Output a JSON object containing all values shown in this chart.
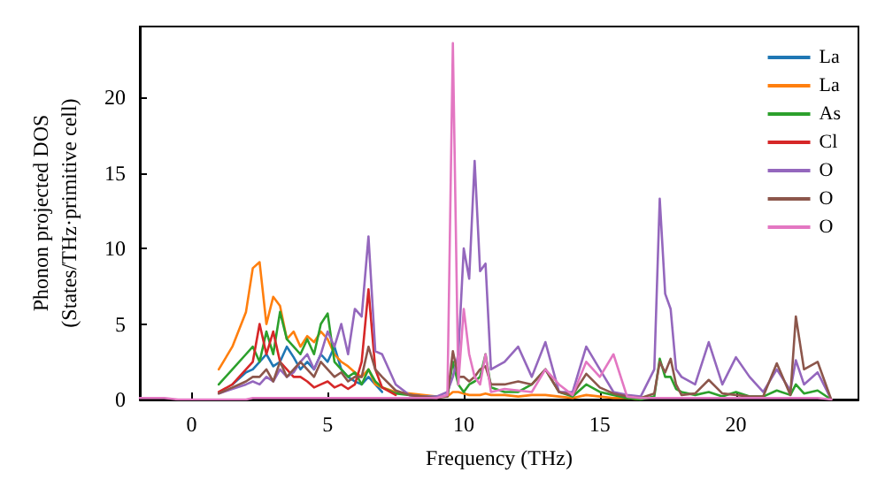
{
  "chart_data": {
    "type": "line",
    "xlabel": "Frequency (THz)",
    "ylabel": "Phonon projected DOS\n(States/THz·primitive cell)",
    "x": [
      -1.9,
      -1.5,
      -1,
      -0.5,
      0,
      0.5,
      1,
      1.5,
      2,
      2.25,
      2.5,
      2.75,
      3,
      3.25,
      3.5,
      3.75,
      4,
      4.25,
      4.5,
      4.75,
      5,
      5.25,
      5.5,
      5.75,
      6,
      6.25,
      6.5,
      6.75,
      7,
      7.5,
      8,
      8.5,
      9,
      9.4,
      9.6,
      9.8,
      10,
      10.2,
      10.4,
      10.6,
      10.8,
      11,
      11.5,
      12,
      12.5,
      13,
      13.5,
      14,
      14.5,
      15,
      15.5,
      16,
      16.5,
      17,
      17.2,
      17.4,
      17.6,
      17.8,
      18,
      18.5,
      19,
      19.5,
      20,
      20.5,
      21,
      21.5,
      22,
      22.2,
      22.5,
      23,
      23.5
    ],
    "series": [
      {
        "name": "La",
        "color": "#1f77b4",
        "values": [
          null,
          null,
          null,
          null,
          null,
          null,
          null,
          1,
          1.8,
          2,
          2.5,
          3,
          2.2,
          2.5,
          3.5,
          2.8,
          2,
          2.5,
          2,
          3,
          2.5,
          3.5,
          2,
          1.5,
          1.2,
          1,
          1.5,
          1,
          0.5,
          null,
          null,
          null,
          null,
          null,
          null,
          null,
          null,
          null,
          null,
          null,
          null,
          null,
          null,
          null,
          null,
          null,
          null,
          null,
          null,
          null,
          null,
          null,
          null,
          null,
          null,
          null,
          null,
          null,
          null,
          null,
          null,
          null,
          null,
          null,
          null,
          null,
          null,
          null,
          null,
          null,
          null
        ]
      },
      {
        "name": "La",
        "color": "#ff7f0e",
        "values": [
          null,
          null,
          null,
          null,
          null,
          null,
          2,
          3.5,
          5.8,
          8.7,
          9.1,
          5,
          6.8,
          6.2,
          4,
          4.5,
          3.5,
          4.2,
          3.8,
          4.5,
          4,
          3,
          2.5,
          2.2,
          1.8,
          1.5,
          2,
          1,
          0.8,
          0.5,
          0.4,
          0.3,
          0.2,
          0.2,
          0.5,
          0.5,
          0.4,
          0.3,
          0.3,
          0.3,
          0.4,
          0.3,
          0.3,
          0.2,
          0.3,
          0.3,
          0.2,
          0.1,
          0.3,
          0.2,
          0.1,
          0.1,
          0,
          null,
          null,
          null,
          null,
          null,
          null,
          null,
          null,
          null,
          null,
          null,
          null,
          null,
          null,
          null,
          null,
          null,
          null
        ]
      },
      {
        "name": "As",
        "color": "#2ca02c",
        "values": [
          null,
          null,
          null,
          null,
          null,
          null,
          1,
          2,
          3,
          3.5,
          2.5,
          4.5,
          3,
          5.8,
          4,
          3.5,
          3,
          4,
          3,
          5,
          5.7,
          2.5,
          2,
          1.5,
          1.8,
          1,
          2,
          1.2,
          0.8,
          0.4,
          0.3,
          0.2,
          0.2,
          0.2,
          2.5,
          1,
          0.5,
          1,
          1.2,
          1.5,
          3,
          0.8,
          0.5,
          0.5,
          1,
          2,
          0.5,
          0.2,
          1,
          0.5,
          0.3,
          0.1,
          0,
          0.2,
          2.7,
          1.5,
          1.5,
          0.7,
          0.5,
          0.3,
          0.5,
          0.2,
          0.5,
          0.2,
          0.2,
          0.6,
          0.3,
          1,
          0.4,
          0.6,
          0
        ]
      },
      {
        "name": "Cl",
        "color": "#d62728",
        "values": [
          null,
          null,
          null,
          null,
          null,
          null,
          0.5,
          1,
          2,
          2.5,
          5,
          3,
          4.5,
          2.5,
          2,
          1.5,
          1.5,
          1.2,
          0.8,
          1,
          1.2,
          0.8,
          1,
          0.7,
          1,
          2.5,
          7.3,
          2,
          0.8,
          0.3,
          null,
          null,
          null,
          null,
          null,
          null,
          null,
          null,
          null,
          null,
          null,
          null,
          null,
          null,
          null,
          null,
          null,
          null,
          null,
          null,
          null,
          null,
          null,
          null,
          null,
          null,
          null,
          null,
          null,
          null,
          null,
          null,
          null,
          null,
          null,
          null,
          null,
          null,
          null,
          null,
          null
        ]
      },
      {
        "name": "O",
        "color": "#9467bd",
        "values": [
          null,
          null,
          null,
          null,
          null,
          null,
          0.4,
          0.7,
          1,
          1.2,
          1,
          1.5,
          1.2,
          2,
          1.5,
          1.8,
          2.5,
          3,
          2,
          3,
          4.5,
          3.5,
          5,
          3,
          6,
          5.5,
          10.8,
          3.2,
          3,
          1,
          0.3,
          0.2,
          0.2,
          0.5,
          1.5,
          3,
          10,
          8,
          15.8,
          8.5,
          9,
          2,
          2.5,
          3.5,
          1.5,
          3.8,
          0.5,
          0.5,
          3.5,
          2,
          0.5,
          0.3,
          0.2,
          2,
          13.3,
          7,
          6,
          2,
          1.5,
          1,
          3.8,
          1,
          2.8,
          1.5,
          0.5,
          2,
          0.6,
          2.6,
          1,
          1.8,
          0
        ]
      },
      {
        "name": "O",
        "color": "#8c564b",
        "values": [
          null,
          null,
          null,
          null,
          null,
          null,
          0.4,
          0.8,
          1.2,
          1.5,
          1.5,
          2,
          1.2,
          2.5,
          1.5,
          2,
          2.5,
          2,
          1.5,
          2.5,
          2,
          1.5,
          1.8,
          1.2,
          1.5,
          1.5,
          3.5,
          2,
          1.5,
          0.6,
          0.3,
          0.2,
          0.1,
          0.2,
          3.2,
          1.5,
          1.5,
          1.2,
          1.5,
          2,
          2.2,
          1,
          1,
          1.2,
          1,
          2,
          0.5,
          0.3,
          1.7,
          0.8,
          0.4,
          0.2,
          0.1,
          0.4,
          2.5,
          1.8,
          2.7,
          1,
          0.3,
          0.4,
          1.3,
          0.4,
          0.3,
          0.2,
          0.2,
          2.4,
          0.3,
          5.5,
          2,
          2.5,
          0
        ]
      },
      {
        "name": "O",
        "color": "#e377c2",
        "values": [
          0.1,
          0.1,
          0.1,
          0,
          0,
          0,
          0,
          0,
          0,
          0.1,
          0.1,
          0.1,
          0.1,
          0.1,
          0.1,
          0.1,
          0.1,
          0.1,
          0.1,
          0.1,
          0.1,
          0.1,
          0.1,
          0.1,
          0.1,
          0.1,
          0.1,
          0.1,
          0.1,
          0.1,
          0.1,
          0.1,
          0.1,
          0.3,
          23.6,
          1,
          6,
          3,
          1.5,
          1,
          3,
          0.5,
          0.7,
          0.6,
          0.5,
          2,
          1,
          0.3,
          2.5,
          1.5,
          3,
          0.2,
          0.1,
          0.1,
          0.1,
          0.1,
          0.1,
          0.1,
          0.1,
          0.1,
          0.1,
          0.1,
          0.1,
          0.1,
          0.1,
          0.1,
          0.1,
          0.1,
          0.1,
          0.1,
          0
        ]
      }
    ],
    "xlim": [
      -1.9,
      24.5
    ],
    "xticks": [
      0,
      5,
      10,
      15,
      20
    ],
    "ylim": [
      0,
      24.7
    ],
    "yticks": [
      0,
      5,
      10,
      15,
      20
    ],
    "legend": "top right",
    "line_style": "solid"
  }
}
